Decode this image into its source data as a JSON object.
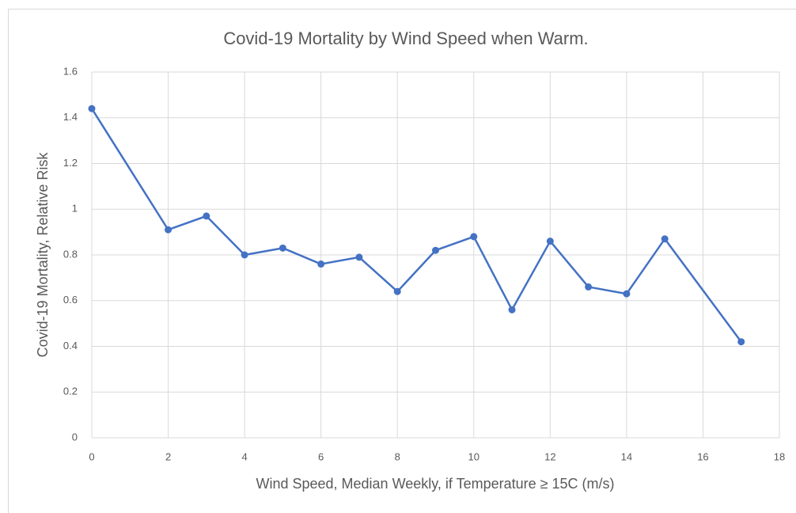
{
  "chart_data": {
    "type": "line",
    "title": "Covid-19 Mortality by Wind Speed when Warm.",
    "x_label": "Wind Speed, Median Weekly, if Temperature ≥ 15C (m/s)",
    "y_label": "Covid-19 Mortality, Relative Risk",
    "x": [
      0,
      2,
      3,
      4,
      5,
      6,
      7,
      8,
      9,
      10,
      11,
      12,
      13,
      14,
      15,
      17
    ],
    "values": [
      1.44,
      0.91,
      0.97,
      0.8,
      0.83,
      0.76,
      0.79,
      0.64,
      0.82,
      0.88,
      0.56,
      0.86,
      0.66,
      0.63,
      0.87,
      0.42
    ],
    "color": "#4472c4",
    "xlim": [
      0,
      18
    ],
    "xticks": [
      0,
      2,
      4,
      6,
      8,
      10,
      12,
      14,
      16,
      18
    ],
    "ylim": [
      0,
      1.6
    ],
    "yticks": [
      0,
      0.2,
      0.4,
      0.6,
      0.8,
      1,
      1.2,
      1.4,
      1.6
    ],
    "grid": true
  }
}
